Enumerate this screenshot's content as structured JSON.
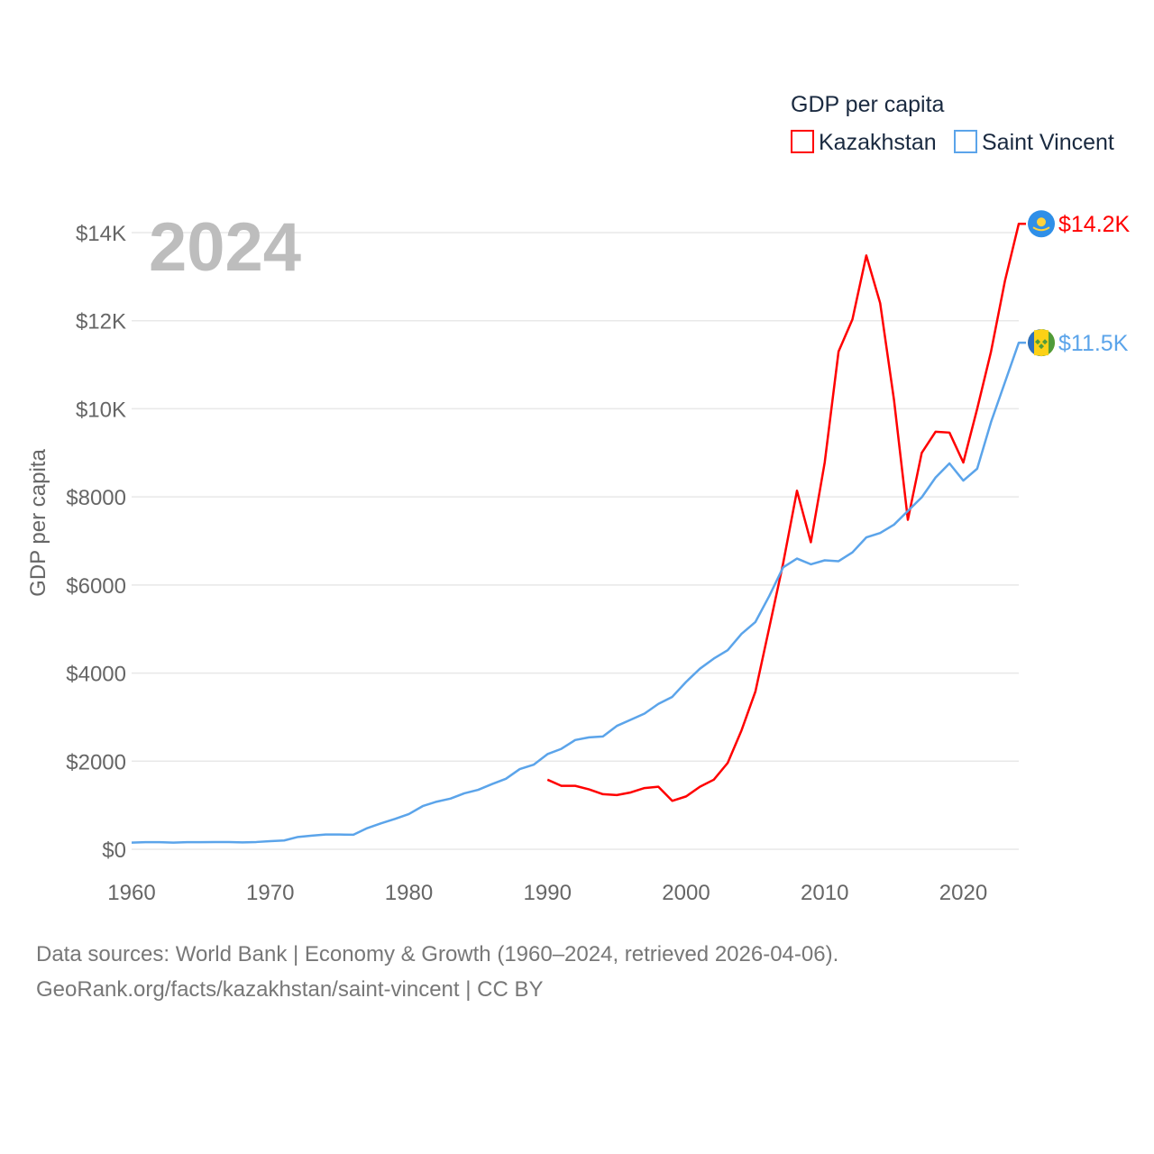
{
  "chart_data": {
    "type": "line",
    "title": "2024",
    "xlabel": "",
    "ylabel": "GDP per capita",
    "xlim": [
      1960,
      2024
    ],
    "ylim": [
      0,
      14000
    ],
    "grid": true,
    "legend": {
      "title": "GDP per capita",
      "placement": "top-right"
    },
    "x_ticks": [
      "1960",
      "1970",
      "1980",
      "1990",
      "2000",
      "2010",
      "2020"
    ],
    "y_ticks": [
      {
        "value": 0,
        "label": "$0"
      },
      {
        "value": 2000,
        "label": "$2000"
      },
      {
        "value": 4000,
        "label": "$4000"
      },
      {
        "value": 6000,
        "label": "$6000"
      },
      {
        "value": 8000,
        "label": "$8000"
      },
      {
        "value": 10000,
        "label": "$10K"
      },
      {
        "value": 12000,
        "label": "$12K"
      },
      {
        "value": 14000,
        "label": "$14K"
      }
    ],
    "series": [
      {
        "name": "Kazakhstan",
        "color": "#ff0000",
        "end_label": "$14.2K",
        "flag": "kazakhstan-flag",
        "x": [
          1990,
          1991,
          1992,
          1993,
          1994,
          1995,
          1996,
          1997,
          1998,
          1999,
          2000,
          2001,
          2002,
          2003,
          2004,
          2005,
          2006,
          2007,
          2008,
          2009,
          2010,
          2011,
          2012,
          2013,
          2014,
          2015,
          2016,
          2017,
          2018,
          2019,
          2020,
          2021,
          2022,
          2023,
          2024
        ],
        "values": [
          1580,
          1440,
          1440,
          1360,
          1250,
          1230,
          1290,
          1390,
          1420,
          1100,
          1200,
          1420,
          1580,
          1960,
          2700,
          3580,
          5030,
          6490,
          8140,
          6970,
          8780,
          11300,
          12030,
          13480,
          12400,
          10200,
          7480,
          9000,
          9480,
          9460,
          8780,
          10000,
          11300,
          12900,
          14200
        ]
      },
      {
        "name": "Saint Vincent",
        "color": "#5ba4ea",
        "end_label": "$11.5K",
        "flag": "saint-vincent-flag",
        "x": [
          1960,
          1961,
          1962,
          1963,
          1964,
          1965,
          1966,
          1967,
          1968,
          1969,
          1970,
          1971,
          1972,
          1973,
          1974,
          1975,
          1976,
          1977,
          1978,
          1979,
          1980,
          1981,
          1982,
          1983,
          1984,
          1985,
          1986,
          1987,
          1988,
          1989,
          1990,
          1991,
          1992,
          1993,
          1994,
          1995,
          1996,
          1997,
          1998,
          1999,
          2000,
          2001,
          2002,
          2003,
          2004,
          2005,
          2006,
          2007,
          2008,
          2009,
          2010,
          2011,
          2012,
          2013,
          2014,
          2015,
          2016,
          2017,
          2018,
          2019,
          2020,
          2021,
          2022,
          2023,
          2024
        ],
        "values": [
          150,
          160,
          160,
          150,
          160,
          160,
          165,
          165,
          155,
          165,
          185,
          200,
          280,
          310,
          335,
          335,
          330,
          480,
          590,
          690,
          800,
          980,
          1080,
          1150,
          1270,
          1350,
          1480,
          1600,
          1820,
          1920,
          2160,
          2280,
          2480,
          2540,
          2560,
          2800,
          2940,
          3080,
          3300,
          3460,
          3800,
          4100,
          4330,
          4520,
          4890,
          5160,
          5750,
          6400,
          6600,
          6470,
          6560,
          6540,
          6740,
          7080,
          7180,
          7370,
          7680,
          7990,
          8440,
          8760,
          8370,
          8640,
          9700,
          10600,
          11500
        ]
      }
    ]
  },
  "footer": {
    "line1": "Data sources: World Bank | Economy & Growth (1960–2024, retrieved 2026-04-06).",
    "line2": "GeoRank.org/facts/kazakhstan/saint-vincent | CC BY"
  }
}
